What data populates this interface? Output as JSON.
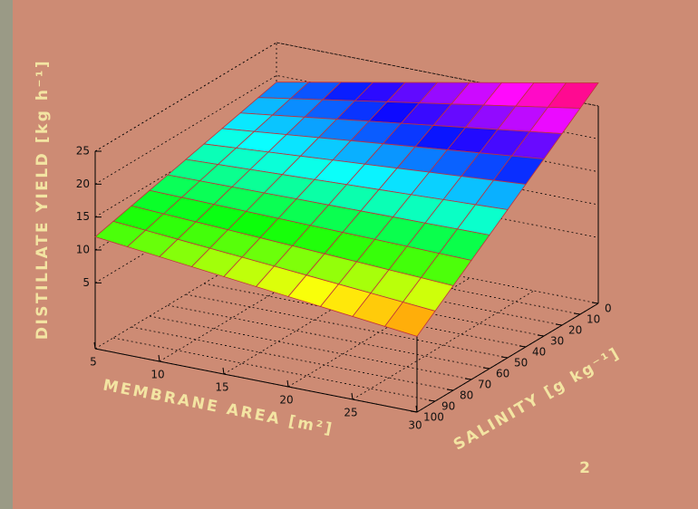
{
  "chart_data": {
    "type": "surface",
    "z_label": "DISTILLATE YIELD [kg h⁻¹]",
    "x_label": "MEMBRANE AREA [m²]",
    "y_label": "SALINITY [g kg⁻¹]",
    "page_number": "2",
    "x": [
      5,
      7.5,
      10,
      12.5,
      15,
      17.5,
      20,
      22.5,
      25,
      27.5,
      30
    ],
    "y": [
      0,
      10,
      20,
      30,
      40,
      50,
      60,
      70,
      80,
      90,
      100
    ],
    "z": [
      [
        19,
        19.95,
        20.9,
        21.85,
        22.8,
        23.75,
        24.7,
        25.65,
        26.6,
        27.55,
        28.5
      ],
      [
        18.3,
        19.1,
        19.9,
        20.7,
        21.5,
        22.3,
        23.1,
        23.9,
        24.7,
        25.5,
        26.3
      ],
      [
        17.6,
        18.25,
        18.9,
        19.55,
        20.2,
        20.85,
        21.5,
        22.15,
        22.8,
        23.45,
        24.1
      ],
      [
        16.9,
        17.4,
        17.9,
        18.4,
        18.9,
        19.4,
        19.9,
        20.4,
        20.9,
        21.4,
        21.9
      ],
      [
        16.2,
        16.55,
        16.9,
        17.25,
        17.6,
        17.95,
        18.3,
        18.65,
        19,
        19.35,
        19.7
      ],
      [
        15.5,
        15.7,
        15.9,
        16.1,
        16.3,
        16.5,
        16.7,
        16.9,
        17.1,
        17.3,
        17.5
      ],
      [
        14.8,
        14.85,
        14.9,
        14.95,
        15,
        15.05,
        15.1,
        15.15,
        15.2,
        15.25,
        15.3
      ],
      [
        14.1,
        14,
        13.9,
        13.8,
        13.7,
        13.6,
        13.5,
        13.4,
        13.3,
        13.2,
        13.1
      ],
      [
        13.4,
        13.15,
        12.9,
        12.65,
        12.4,
        12.15,
        11.9,
        11.65,
        11.4,
        11.15,
        10.9
      ],
      [
        12.7,
        12.3,
        11.9,
        11.5,
        11.1,
        10.7,
        10.3,
        9.9,
        9.5,
        9.1,
        8.7
      ],
      [
        12,
        11.45,
        10.9,
        10.35,
        9.8,
        9.25,
        8.7,
        8.15,
        7.6,
        7.05,
        6.5
      ]
    ],
    "xlim": [
      5,
      30
    ],
    "xticks": [
      5,
      10,
      15,
      20,
      25,
      30
    ],
    "ylim": [
      0,
      100
    ],
    "yticks": [
      0,
      10,
      20,
      30,
      40,
      50,
      60,
      70,
      80,
      90,
      100
    ],
    "zlim": [
      -5,
      25
    ],
    "zticks": [
      5,
      10,
      15,
      20,
      25
    ],
    "grid": true
  }
}
